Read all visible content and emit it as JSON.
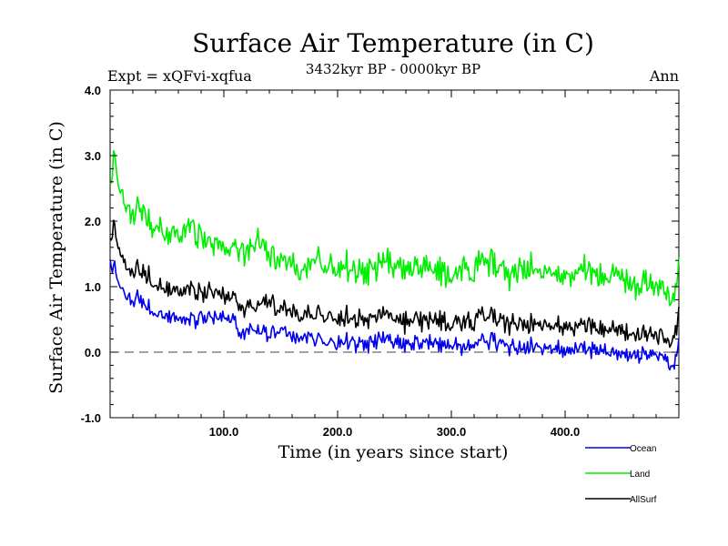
{
  "chart_data": {
    "type": "line",
    "title": "Surface Air Temperature (in C)",
    "subtitle_left": "Expt = xQFvi-xqfua",
    "subtitle_center": "3432kyr BP - 0000kyr BP",
    "subtitle_right": "Ann",
    "xlabel": "Time (in years since start)",
    "ylabel": "Surface Air Temperature (in C)",
    "xlim": [
      0,
      500
    ],
    "ylim": [
      -1.0,
      4.0
    ],
    "x_ticks": [
      {
        "value": 100,
        "label": "100.0"
      },
      {
        "value": 200,
        "label": "200.0"
      },
      {
        "value": 300,
        "label": "300.0"
      },
      {
        "value": 400,
        "label": "400.0"
      }
    ],
    "y_ticks": [
      {
        "value": -1.0,
        "label": "-1.0"
      },
      {
        "value": 0.0,
        "label": "0.0"
      },
      {
        "value": 1.0,
        "label": "1.0"
      },
      {
        "value": 2.0,
        "label": "2.0"
      },
      {
        "value": 3.0,
        "label": "3.0"
      },
      {
        "value": 4.0,
        "label": "4.0"
      }
    ],
    "zero_line": 0.0,
    "series": [
      {
        "name": "Ocean",
        "color": "#0000ee",
        "x": [
          0,
          5,
          10,
          15,
          20,
          25,
          30,
          40,
          50,
          60,
          70,
          80,
          90,
          100,
          110,
          115,
          120,
          130,
          140,
          150,
          160,
          170,
          180,
          190,
          200,
          210,
          220,
          230,
          240,
          250,
          260,
          270,
          280,
          290,
          300,
          310,
          320,
          330,
          340,
          350,
          360,
          370,
          380,
          390,
          400,
          410,
          420,
          430,
          440,
          450,
          460,
          470,
          480,
          490,
          495,
          500
        ],
        "values": [
          1.45,
          1.25,
          1.0,
          0.85,
          0.8,
          0.9,
          0.75,
          0.62,
          0.55,
          0.5,
          0.47,
          0.5,
          0.52,
          0.55,
          0.45,
          0.2,
          0.35,
          0.3,
          0.28,
          0.3,
          0.25,
          0.3,
          0.2,
          0.15,
          0.18,
          0.2,
          0.15,
          0.18,
          0.22,
          0.15,
          0.1,
          0.12,
          0.15,
          0.1,
          0.12,
          0.05,
          0.1,
          0.2,
          0.15,
          0.1,
          0.05,
          0.1,
          0.05,
          0.08,
          0.0,
          0.05,
          0.02,
          0.05,
          0.0,
          0.02,
          -0.05,
          0.0,
          -0.02,
          -0.1,
          -0.25,
          0.2
        ]
      },
      {
        "name": "Land",
        "color": "#00ee00",
        "x": [
          0,
          3,
          5,
          10,
          15,
          20,
          25,
          30,
          40,
          50,
          60,
          70,
          80,
          90,
          100,
          110,
          120,
          130,
          140,
          150,
          160,
          170,
          180,
          190,
          200,
          210,
          220,
          230,
          240,
          250,
          260,
          270,
          280,
          290,
          300,
          310,
          320,
          330,
          340,
          350,
          360,
          370,
          380,
          390,
          400,
          410,
          420,
          430,
          440,
          450,
          460,
          470,
          480,
          490,
          495,
          500
        ],
        "values": [
          2.6,
          3.0,
          2.9,
          2.5,
          2.2,
          2.1,
          2.4,
          2.1,
          1.95,
          1.8,
          1.75,
          1.9,
          1.7,
          1.65,
          1.6,
          1.55,
          1.5,
          1.7,
          1.45,
          1.4,
          1.35,
          1.3,
          1.45,
          1.3,
          1.35,
          1.35,
          1.25,
          1.3,
          1.4,
          1.3,
          1.25,
          1.25,
          1.3,
          1.2,
          1.15,
          1.25,
          1.2,
          1.45,
          1.3,
          1.2,
          1.25,
          1.3,
          1.2,
          1.25,
          1.1,
          1.2,
          1.25,
          1.15,
          1.2,
          1.25,
          1.0,
          1.1,
          1.05,
          0.95,
          0.8,
          1.4
        ]
      },
      {
        "name": "AllSurf",
        "color": "#000000",
        "x": [
          0,
          3,
          5,
          10,
          15,
          20,
          25,
          30,
          40,
          50,
          60,
          70,
          80,
          90,
          100,
          110,
          115,
          120,
          130,
          140,
          150,
          160,
          170,
          180,
          190,
          200,
          210,
          220,
          230,
          240,
          250,
          260,
          270,
          280,
          290,
          300,
          310,
          320,
          330,
          340,
          350,
          360,
          370,
          380,
          390,
          400,
          410,
          420,
          430,
          440,
          450,
          460,
          470,
          480,
          490,
          495,
          500
        ],
        "values": [
          1.8,
          1.95,
          1.85,
          1.5,
          1.3,
          1.25,
          1.35,
          1.2,
          1.05,
          0.95,
          0.9,
          0.95,
          0.88,
          0.9,
          0.88,
          0.8,
          0.6,
          0.72,
          0.65,
          0.8,
          0.65,
          0.6,
          0.62,
          0.6,
          0.55,
          0.55,
          0.57,
          0.5,
          0.55,
          0.6,
          0.5,
          0.45,
          0.48,
          0.5,
          0.45,
          0.42,
          0.45,
          0.45,
          0.6,
          0.5,
          0.45,
          0.42,
          0.45,
          0.4,
          0.42,
          0.35,
          0.4,
          0.4,
          0.38,
          0.35,
          0.4,
          0.25,
          0.32,
          0.3,
          0.22,
          0.15,
          0.65
        ]
      }
    ]
  }
}
